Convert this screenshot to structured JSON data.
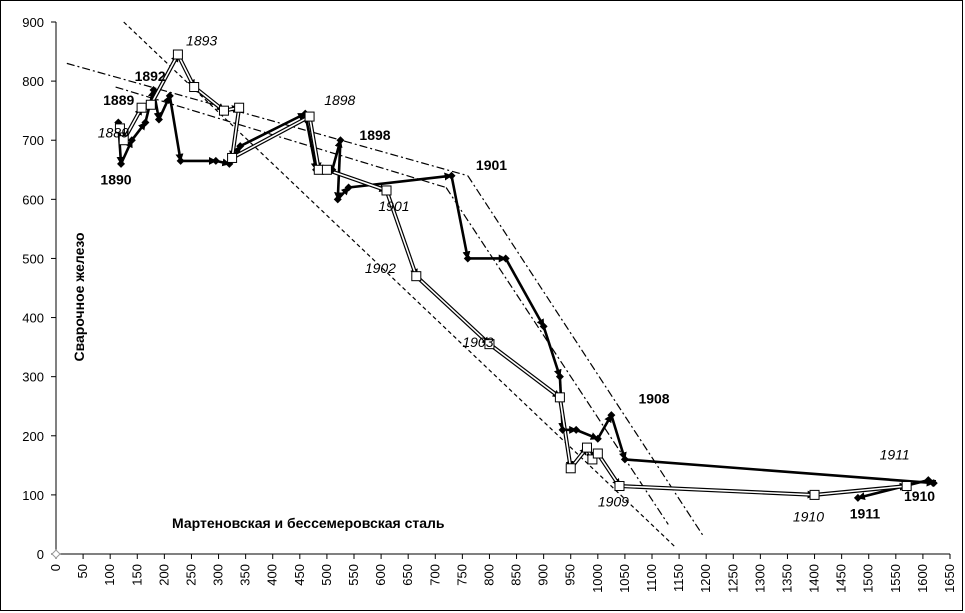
{
  "chart_data": {
    "type": "line",
    "title": "",
    "xlabel": "Мартеновская и бессемеровская сталь",
    "ylabel": "Сварочное железо",
    "xlim": [
      0,
      1650
    ],
    "ylim": [
      0,
      900
    ],
    "x_ticks": [
      "0",
      "50",
      "100",
      "150",
      "200",
      "250",
      "300",
      "350",
      "400",
      "450",
      "500",
      "550",
      "600",
      "650",
      "700",
      "750",
      "800",
      "850",
      "900",
      "950",
      "1000",
      "1050",
      "1100",
      "1150",
      "1200",
      "1250",
      "1300",
      "1350",
      "1400",
      "1450",
      "1500",
      "1550",
      "1600",
      "1650"
    ],
    "y_ticks": [
      "0",
      "100",
      "200",
      "300",
      "400",
      "500",
      "600",
      "700",
      "800",
      "900"
    ],
    "grid": false,
    "series": [
      {
        "name": "",
        "marker": "diamond",
        "points": [
          [
            115,
            730
          ],
          [
            120,
            660
          ],
          [
            140,
            700
          ],
          [
            165,
            730
          ],
          [
            180,
            785
          ],
          [
            190,
            735
          ],
          [
            210,
            775
          ],
          [
            230,
            665
          ],
          [
            295,
            665
          ],
          [
            320,
            660
          ],
          [
            340,
            690
          ],
          [
            460,
            745
          ],
          [
            480,
            650
          ],
          [
            510,
            650
          ],
          [
            525,
            700
          ],
          [
            520,
            600
          ],
          [
            540,
            620
          ],
          [
            730,
            640
          ],
          [
            760,
            500
          ],
          [
            830,
            500
          ],
          [
            900,
            385
          ],
          [
            930,
            300
          ],
          [
            935,
            210
          ],
          [
            960,
            210
          ],
          [
            1000,
            195
          ],
          [
            1025,
            235
          ],
          [
            1050,
            160
          ],
          [
            1620,
            120
          ],
          [
            1610,
            125
          ],
          [
            1480,
            95
          ]
        ]
      },
      {
        "name": "",
        "marker": "square",
        "points": [
          [
            118,
            720
          ],
          [
            125,
            700
          ],
          [
            158,
            755
          ],
          [
            175,
            760
          ],
          [
            225,
            845
          ],
          [
            255,
            790
          ],
          [
            310,
            750
          ],
          [
            338,
            755
          ],
          [
            325,
            670
          ],
          [
            468,
            740
          ],
          [
            485,
            650
          ],
          [
            500,
            650
          ],
          [
            610,
            615
          ],
          [
            665,
            470
          ],
          [
            800,
            355
          ],
          [
            930,
            265
          ],
          [
            950,
            145
          ],
          [
            980,
            180
          ],
          [
            990,
            160
          ],
          [
            1000,
            170
          ],
          [
            1040,
            115
          ],
          [
            1400,
            100
          ],
          [
            1570,
            115
          ]
        ]
      }
    ],
    "trendlines": [
      {
        "style": "dashed",
        "from": [
          125,
          900
        ],
        "to": [
          1145,
          10
        ]
      },
      {
        "style": "dash-dot",
        "from": [
          20,
          830
        ],
        "to": [
          760,
          640
        ]
      },
      {
        "style": "dash-dot",
        "from": [
          760,
          640
        ],
        "to": [
          1195,
          30
        ]
      },
      {
        "style": "dash-dot",
        "from": [
          110,
          790
        ],
        "to": [
          720,
          620
        ]
      },
      {
        "style": "dash-dot",
        "from": [
          720,
          620
        ],
        "to": [
          1130,
          50
        ]
      }
    ],
    "annotations": [
      {
        "text": "1889",
        "style": "bold",
        "x": 87,
        "y": 760
      },
      {
        "text": "1889",
        "style": "italic",
        "x": 77,
        "y": 705
      },
      {
        "text": "1890",
        "style": "bold",
        "x": 82,
        "y": 625
      },
      {
        "text": "1892",
        "style": "bold",
        "x": 145,
        "y": 800
      },
      {
        "text": "1893",
        "style": "italic",
        "x": 240,
        "y": 860
      },
      {
        "text": "1898",
        "style": "italic",
        "x": 495,
        "y": 760
      },
      {
        "text": "1898",
        "style": "bold",
        "x": 560,
        "y": 700
      },
      {
        "text": "1901",
        "style": "bold",
        "x": 775,
        "y": 650
      },
      {
        "text": "1901",
        "style": "italic",
        "x": 595,
        "y": 580
      },
      {
        "text": "1902",
        "style": "italic",
        "x": 570,
        "y": 475
      },
      {
        "text": "1903",
        "style": "italic",
        "x": 750,
        "y": 350
      },
      {
        "text": "1908",
        "style": "bold",
        "x": 1075,
        "y": 255
      },
      {
        "text": "1909",
        "style": "italic",
        "x": 1000,
        "y": 80
      },
      {
        "text": "1910",
        "style": "italic",
        "x": 1360,
        "y": 55
      },
      {
        "text": "1911",
        "style": "bold",
        "x": 1465,
        "y": 60
      },
      {
        "text": "1911",
        "style": "italic",
        "x": 1520,
        "y": 160
      },
      {
        "text": "1910",
        "style": "bold",
        "x": 1565,
        "y": 90
      }
    ]
  }
}
